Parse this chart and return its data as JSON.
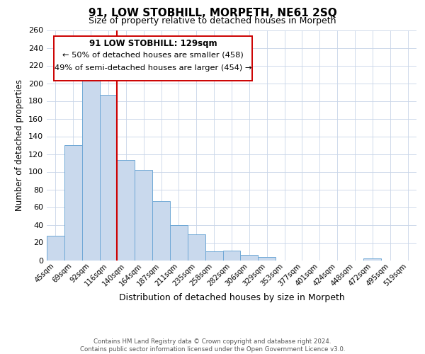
{
  "title": "91, LOW STOBHILL, MORPETH, NE61 2SQ",
  "subtitle": "Size of property relative to detached houses in Morpeth",
  "xlabel": "Distribution of detached houses by size in Morpeth",
  "ylabel": "Number of detached properties",
  "bar_labels": [
    "45sqm",
    "69sqm",
    "92sqm",
    "116sqm",
    "140sqm",
    "164sqm",
    "187sqm",
    "211sqm",
    "235sqm",
    "258sqm",
    "282sqm",
    "306sqm",
    "329sqm",
    "353sqm",
    "377sqm",
    "401sqm",
    "424sqm",
    "448sqm",
    "472sqm",
    "495sqm",
    "519sqm"
  ],
  "bar_values": [
    28,
    130,
    203,
    187,
    113,
    102,
    67,
    40,
    29,
    10,
    11,
    6,
    4,
    0,
    0,
    0,
    0,
    0,
    2,
    0,
    0
  ],
  "bar_color": "#c9d9ed",
  "bar_edge_color": "#6fa8d6",
  "vline_index": 3,
  "vline_color": "#cc0000",
  "ylim": [
    0,
    260
  ],
  "yticks": [
    0,
    20,
    40,
    60,
    80,
    100,
    120,
    140,
    160,
    180,
    200,
    220,
    240,
    260
  ],
  "annotation_title": "91 LOW STOBHILL: 129sqm",
  "annotation_line1": "← 50% of detached houses are smaller (458)",
  "annotation_line2": "49% of semi-detached houses are larger (454) →",
  "annotation_box_color": "#ffffff",
  "annotation_box_edge": "#cc0000",
  "footer_line1": "Contains HM Land Registry data © Crown copyright and database right 2024.",
  "footer_line2": "Contains public sector information licensed under the Open Government Licence v3.0.",
  "background_color": "#ffffff",
  "grid_color": "#c8d4e8",
  "title_fontsize": 11,
  "subtitle_fontsize": 9
}
